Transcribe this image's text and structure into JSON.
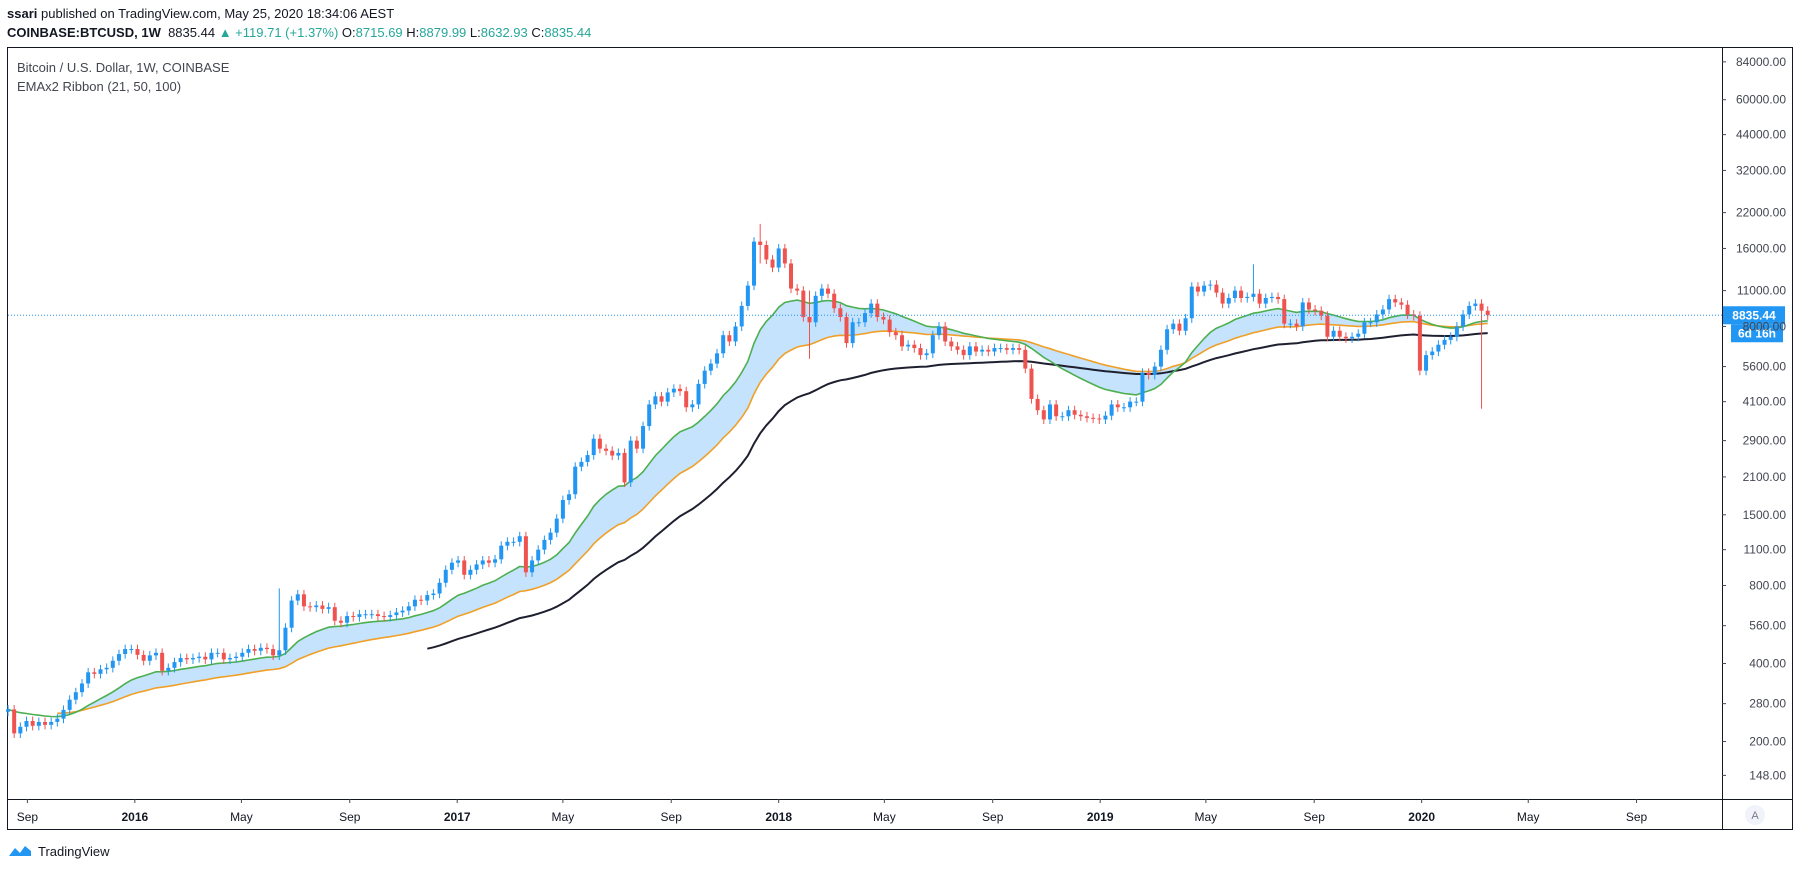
{
  "header": {
    "user": "ssari",
    "published_text": "published on TradingView.com, May 25, 2020 18:34:06 AEST",
    "symbol": "COINBASE:BTCUSD, 1W",
    "last": "8835.44",
    "change": "▲ +119.71 (+1.37%)",
    "open_label": "O:",
    "open": "8715.69",
    "high_label": "H:",
    "high": "8879.99",
    "low_label": "L:",
    "low": "8632.93",
    "close_label": "C:",
    "close": "8835.44"
  },
  "legend": {
    "title": "Bitcoin / U.S. Dollar, 1W, COINBASE",
    "indicator": "EMAx2 Ribbon (21, 50, 100)"
  },
  "footer": {
    "brand": "TradingView",
    "logo_icon": "tradingview-logo-icon"
  },
  "colors": {
    "up": "#2196f3",
    "down": "#ef5350",
    "ema21": "#4caf50",
    "ema50": "#f0a028",
    "ema100": "#1e2030",
    "ribbon": "#bbdefb",
    "price_line": "#2196f3",
    "axis_text": "#434651"
  },
  "chart_data": {
    "type": "candlestick",
    "scale": "log",
    "ylim": [
      120,
      95000
    ],
    "x_range": [
      "2015-08-10",
      "2020-12-07"
    ],
    "y_ticks": [
      "148.00",
      "200.00",
      "280.00",
      "400.00",
      "560.00",
      "800.00",
      "1100.00",
      "1500.00",
      "2100.00",
      "2900.00",
      "4100.00",
      "5600.00",
      "8000.00",
      "11000.00",
      "16000.00",
      "22000.00",
      "32000.00",
      "44000.00",
      "60000.00",
      "84000.00"
    ],
    "x_ticks": [
      {
        "date": "2015-09-01",
        "label": "Sep",
        "bold": false
      },
      {
        "date": "2016-01-01",
        "label": "2016",
        "bold": true
      },
      {
        "date": "2016-05-01",
        "label": "May",
        "bold": false
      },
      {
        "date": "2016-09-01",
        "label": "Sep",
        "bold": false
      },
      {
        "date": "2017-01-01",
        "label": "2017",
        "bold": true
      },
      {
        "date": "2017-05-01",
        "label": "May",
        "bold": false
      },
      {
        "date": "2017-09-01",
        "label": "Sep",
        "bold": false
      },
      {
        "date": "2018-01-01",
        "label": "2018",
        "bold": true
      },
      {
        "date": "2018-05-01",
        "label": "May",
        "bold": false
      },
      {
        "date": "2018-09-01",
        "label": "Sep",
        "bold": false
      },
      {
        "date": "2019-01-01",
        "label": "2019",
        "bold": true
      },
      {
        "date": "2019-05-01",
        "label": "May",
        "bold": false
      },
      {
        "date": "2019-09-01",
        "label": "Sep",
        "bold": false
      },
      {
        "date": "2020-01-01",
        "label": "2020",
        "bold": true
      },
      {
        "date": "2020-05-01",
        "label": "May",
        "bold": false
      },
      {
        "date": "2020-09-01",
        "label": "Sep",
        "bold": false
      }
    ],
    "price_line": {
      "value": 8835.44,
      "label": "8835.44",
      "countdown": "6d 16h"
    },
    "closes_start": "2015-08-10",
    "closes": [
      266,
      215,
      228,
      240,
      230,
      238,
      232,
      238,
      245,
      265,
      290,
      310,
      335,
      370,
      365,
      380,
      385,
      410,
      435,
      455,
      455,
      432,
      410,
      430,
      440,
      375,
      385,
      405,
      420,
      415,
      420,
      425,
      415,
      440,
      440,
      415,
      420,
      425,
      440,
      455,
      448,
      460,
      455,
      430,
      450,
      550,
      700,
      740,
      665,
      660,
      670,
      650,
      660,
      585,
      575,
      610,
      605,
      620,
      620,
      620,
      610,
      605,
      615,
      630,
      640,
      665,
      705,
      700,
      735,
      745,
      820,
      920,
      980,
      1000,
      880,
      920,
      965,
      1000,
      980,
      1010,
      1140,
      1180,
      1180,
      1240,
      900,
      1000,
      1100,
      1200,
      1280,
      1450,
      1710,
      1800,
      2300,
      2400,
      2550,
      2950,
      2700,
      2650,
      2540,
      2600,
      2000,
      2900,
      2700,
      3300,
      4000,
      4300,
      4100,
      4450,
      4600,
      4500,
      3900,
      4000,
      4800,
      5400,
      5750,
      6300,
      7400,
      7000,
      8000,
      9600,
      11500,
      17000,
      16500,
      14500,
      13500,
      16000,
      14000,
      11200,
      11000,
      8700,
      8300,
      10500,
      11200,
      10700,
      9400,
      8700,
      6900,
      8300,
      8300,
      9000,
      9800,
      8700,
      8500,
      7600,
      7400,
      6700,
      6800,
      6600,
      6200,
      6300,
      7400,
      8000,
      7000,
      6700,
      6500,
      6200,
      6700,
      6400,
      6500,
      6400,
      6600,
      6600,
      6500,
      6600,
      6500,
      5500,
      4200,
      3800,
      3500,
      4000,
      3600,
      3600,
      3800,
      3650,
      3600,
      3550,
      3530,
      3500,
      3620,
      4000,
      3900,
      3900,
      4100,
      4100,
      5300,
      5200,
      5600,
      6500,
      7800,
      8200,
      7700,
      8600,
      11400,
      10900,
      11500,
      11600,
      10800,
      9800,
      10300,
      11000,
      10300,
      10400,
      10700,
      9800,
      10300,
      10400,
      10200,
      8200,
      8200,
      8000,
      9900,
      9300,
      9200,
      8800,
      7300,
      7700,
      7300,
      7200,
      7300,
      7500,
      8300,
      8300,
      8900,
      9300,
      10200,
      9900,
      9700,
      8900,
      8800,
      5400,
      6200,
      6400,
      6800,
      7100,
      7300,
      8000,
      8900,
      9600,
      9800,
      9200,
      8835
    ],
    "notable_wicks": [
      {
        "date": "2016-06-13",
        "high": 780,
        "low": 600
      },
      {
        "date": "2017-12-11",
        "high": 19900,
        "low": 14000
      },
      {
        "date": "2018-02-05",
        "high": 11000,
        "low": 6000
      },
      {
        "date": "2019-06-24",
        "high": 13900,
        "low": 10300
      },
      {
        "date": "2020-03-09",
        "high": 9200,
        "low": 3850
      }
    ],
    "series": [
      {
        "name": "EMA 21",
        "color": "#4caf50"
      },
      {
        "name": "EMA 50",
        "color": "#f0a028"
      },
      {
        "name": "EMA 100",
        "color": "#1e2030"
      }
    ]
  }
}
